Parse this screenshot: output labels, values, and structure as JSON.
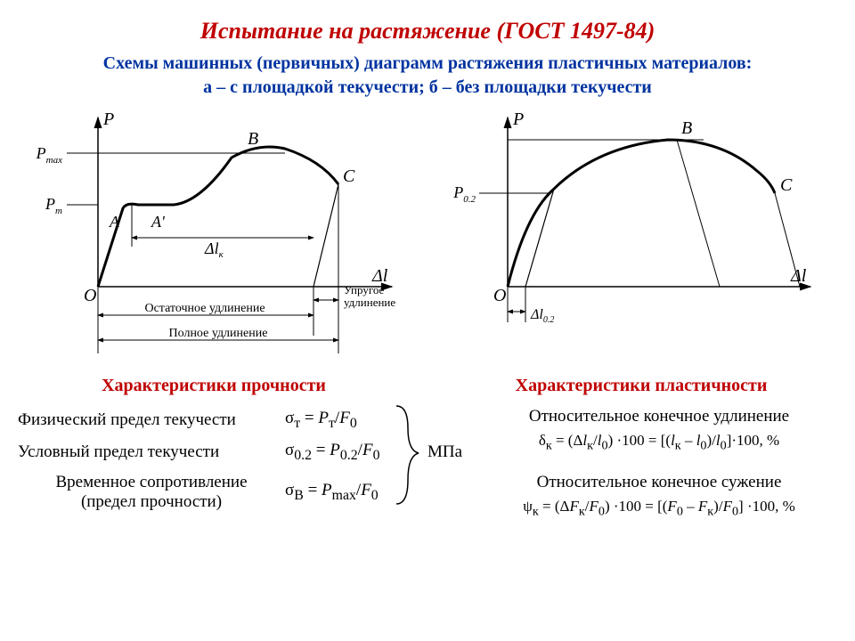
{
  "title": {
    "text": "Испытание на растяжение (ГОСТ 1497-84)",
    "color": "#c00000",
    "fontsize": 26
  },
  "subtitle": {
    "line1": "Схемы машинных (первичных) диаграмм растяжения пластичных материалов:",
    "line2": "а – с площадкой текучести; б – без площадки текучести",
    "color": "#0033a0",
    "fontsize": 20
  },
  "diagramA": {
    "axis_y": "P",
    "axis_x": "Δl",
    "pmax": "P",
    "pmax_sub": "max",
    "pt": "P",
    "pt_sub": "т",
    "A": "A",
    "Aprime": "A'",
    "B": "B",
    "C": "C",
    "O": "O",
    "dlk": "Δl",
    "dlk_sub": "к",
    "elastic": "Упругое\nудлинение",
    "residual": "Остаточное удлинение",
    "total": "Полное удлинение",
    "stroke": "#000000",
    "curve_width": 3
  },
  "diagramB": {
    "axis_y": "P",
    "axis_x": "Δl",
    "p02": "P",
    "p02_sub": "0.2",
    "B": "B",
    "C": "C",
    "O": "O",
    "dl02": "Δl",
    "dl02_sub": "0.2",
    "stroke": "#000000",
    "curve_width": 3
  },
  "sections": {
    "strength": {
      "header": "Характеристики прочности",
      "color": "#c00000",
      "fontsize": 20
    },
    "plasticity": {
      "header": "Характеристики пластичности",
      "color": "#c00000",
      "fontsize": 20
    }
  },
  "strength_rows": {
    "r1_label": "Физический предел текучести",
    "r1_formula": "σ<sub>т</sub> = <i>P</i><sub>т</sub>/<i>F</i><sub>0</sub>",
    "r2_label": "Условный предел текучести",
    "r2_formula": "σ<sub>0.2</sub> = <i>P</i><sub>0.2</sub>/<i>F</i><sub>0</sub>",
    "r3_label": "Временное сопротивление\n(предел прочности)",
    "r3_formula": "σ<sub>B</sub> = <i>P</i><sub>max</sub>/<i>F</i><sub>0</sub>",
    "unit": "МПа"
  },
  "plasticity_rows": {
    "r1_label": "Относительное конечное удлинение",
    "r1_formula": "δ<sub>к</sub> = (Δ<i>l</i><sub>к</sub>/<i>l</i><sub>0</sub>) ·100 = [(<i>l</i><sub>к</sub> – <i>l</i><sub>0</sub>)/<i>l</i><sub>0</sub>]·100, %",
    "r2_label": "Относительное конечное сужение",
    "r2_formula": "ψ<sub>к</sub> = (Δ<i>F</i><sub>к</sub>/<i>F</i><sub>0</sub>) ·100 = [(<i>F</i><sub>0</sub> – <i>F</i><sub>к</sub>)/<i>F</i><sub>0</sub>] ·100, %"
  }
}
